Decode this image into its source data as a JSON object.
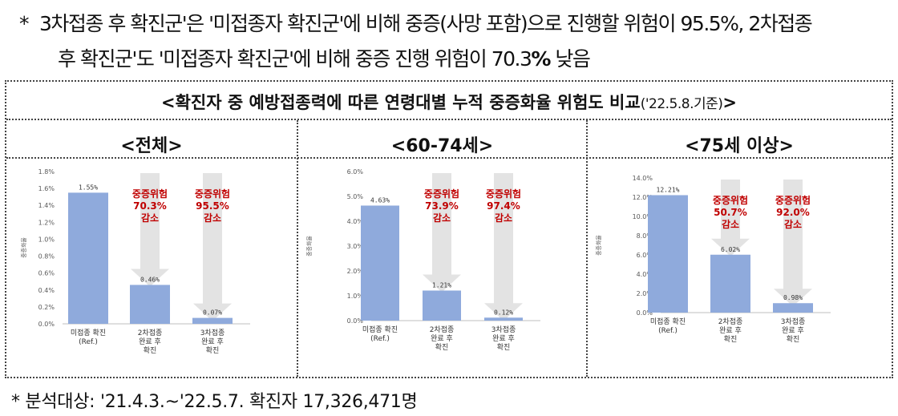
{
  "note": {
    "star": "*",
    "line1": "3차접종 후 확진군'은 '미접종자 확진군'에 비해 중증(사망 포함)으로 진행할 위험이 95.5%, 2차접종",
    "line2_pre": "후 확진군'도 '미접종자 확진군'에 비해 중증 진행 위험이 70.3",
    "line2_pct": "%",
    "line2_post": " 낮음"
  },
  "title": {
    "main": "<확진자 중 예방접종력에 따른 연령대별 누적 중증화율 위험도 비교",
    "date": "('22.5.8.기준)",
    "close": ">"
  },
  "footer": "* 분석대상: '21.4.3.~'22.5.7. 확진자 17,326,471명",
  "colors": {
    "bar": "#8FAADC",
    "arrow": "#E3E3E3",
    "red": "#C00000",
    "axis": "#595959"
  },
  "chart_data": [
    {
      "type": "bar",
      "panel_title": "<전체>",
      "ylabel": "중증화율",
      "ylim": [
        0,
        1.8
      ],
      "yticks": [
        "0.0%",
        "0.2%",
        "0.4%",
        "0.6%",
        "0.8%",
        "1.0%",
        "1.2%",
        "1.4%",
        "1.6%",
        "1.8%"
      ],
      "categories": [
        [
          "미접종 확진",
          "(Ref.)"
        ],
        [
          "2차접종",
          "완료 후",
          "확진"
        ],
        [
          "3차접종",
          "완료 후",
          "확진"
        ]
      ],
      "values": [
        1.55,
        0.46,
        0.07
      ],
      "value_labels": [
        "1.55%",
        "0.46%",
        "0.07%"
      ],
      "annotations": [
        [
          "중증위험",
          "70.3%",
          "감소"
        ],
        [
          "중증위험",
          "95.5%",
          "감소"
        ]
      ]
    },
    {
      "type": "bar",
      "panel_title": "<60-74세>",
      "ylabel": "중증화율",
      "ylim": [
        0,
        6.0
      ],
      "yticks": [
        "0.0%",
        "1.0%",
        "2.0%",
        "3.0%",
        "4.0%",
        "5.0%",
        "6.0%"
      ],
      "categories": [
        [
          "미접종 확진",
          "(Ref.)"
        ],
        [
          "2차접종",
          "완료 후",
          "확진"
        ],
        [
          "3차접종",
          "완료 후",
          "확진"
        ]
      ],
      "values": [
        4.63,
        1.21,
        0.12
      ],
      "value_labels": [
        "4.63%",
        "1.21%",
        "0.12%"
      ],
      "annotations": [
        [
          "중증위험",
          "73.9%",
          "감소"
        ],
        [
          "중증위험",
          "97.4%",
          "감소"
        ]
      ]
    },
    {
      "type": "bar",
      "panel_title": "<75세 이상>",
      "ylabel": "중증화율",
      "ylim": [
        0,
        14.0
      ],
      "yticks": [
        "0.0%",
        "2.0%",
        "4.0%",
        "6.0%",
        "8.0%",
        "10.0%",
        "12.0%",
        "14.0%"
      ],
      "categories": [
        [
          "미접종 확진",
          "(Ref.)"
        ],
        [
          "2차접종",
          "완료 후",
          "확진"
        ],
        [
          "3차접종",
          "완료 후",
          "확진"
        ]
      ],
      "values": [
        12.21,
        6.02,
        0.98
      ],
      "value_labels": [
        "12.21%",
        "6.02%",
        "0.98%"
      ],
      "annotations": [
        [
          "중증위험",
          "50.7%",
          "감소"
        ],
        [
          "중증위험",
          "92.0%",
          "감소"
        ]
      ]
    }
  ]
}
